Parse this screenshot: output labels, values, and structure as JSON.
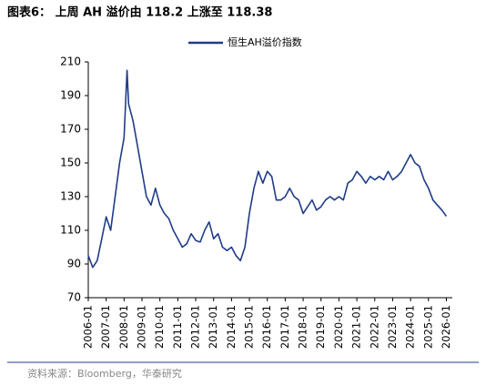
{
  "chart_data": {
    "type": "line",
    "title": "图表6：  上周 AH 溢价由 118.2 上涨至 118.38",
    "source": "资料来源：Bloomberg，华泰研究",
    "x": [
      "2006-01",
      "2006-04",
      "2006-07",
      "2006-10",
      "2007-01",
      "2007-04",
      "2007-07",
      "2007-10",
      "2008-01",
      "2008-03",
      "2008-04",
      "2008-07",
      "2008-10",
      "2009-01",
      "2009-04",
      "2009-07",
      "2009-10",
      "2010-01",
      "2010-04",
      "2010-07",
      "2010-10",
      "2011-01",
      "2011-04",
      "2011-07",
      "2011-10",
      "2012-01",
      "2012-04",
      "2012-07",
      "2012-10",
      "2013-01",
      "2013-04",
      "2013-07",
      "2013-10",
      "2014-01",
      "2014-04",
      "2014-07",
      "2014-10",
      "2015-01",
      "2015-04",
      "2015-07",
      "2015-10",
      "2016-01",
      "2016-04",
      "2016-07",
      "2016-10",
      "2017-01",
      "2017-04",
      "2017-07",
      "2017-10",
      "2018-01",
      "2018-04",
      "2018-07",
      "2018-10",
      "2019-01",
      "2019-04",
      "2019-07",
      "2019-10",
      "2020-01",
      "2020-04",
      "2020-07",
      "2020-10",
      "2021-01",
      "2021-04",
      "2021-07",
      "2021-10",
      "2022-01",
      "2022-04",
      "2022-07",
      "2022-10",
      "2023-01",
      "2023-04",
      "2023-07",
      "2023-10",
      "2024-01",
      "2024-04",
      "2024-07",
      "2024-10",
      "2025-01",
      "2025-04",
      "2025-07",
      "2025-10",
      "2026-01"
    ],
    "series": [
      {
        "name": "恒生AH溢价指数",
        "color": "#1f3c88",
        "values": [
          95,
          88,
          92,
          105,
          118,
          110,
          130,
          150,
          165,
          205,
          185,
          175,
          160,
          145,
          130,
          125,
          135,
          125,
          120,
          117,
          110,
          105,
          100,
          102,
          108,
          104,
          103,
          110,
          115,
          105,
          108,
          100,
          98,
          100,
          95,
          92,
          100,
          120,
          135,
          145,
          138,
          145,
          142,
          128,
          128,
          130,
          135,
          130,
          128,
          120,
          124,
          128,
          122,
          124,
          128,
          130,
          128,
          130,
          128,
          138,
          140,
          145,
          142,
          138,
          142,
          140,
          142,
          140,
          145,
          140,
          142,
          145,
          150,
          155,
          150,
          148,
          140,
          135,
          128,
          125,
          122,
          118.38
        ]
      }
    ],
    "xlim": [
      "2006-01",
      "2026-05"
    ],
    "xticks": [
      "2006-01",
      "2007-01",
      "2008-01",
      "2009-01",
      "2010-01",
      "2011-01",
      "2012-01",
      "2013-01",
      "2014-01",
      "2015-01",
      "2016-01",
      "2017-01",
      "2018-01",
      "2019-01",
      "2020-01",
      "2021-01",
      "2022-01",
      "2023-01",
      "2024-01",
      "2025-01",
      "2026-01"
    ],
    "ylim": [
      70,
      210
    ],
    "yticks": [
      70,
      90,
      110,
      130,
      150,
      170,
      190,
      210
    ],
    "grid": false
  }
}
